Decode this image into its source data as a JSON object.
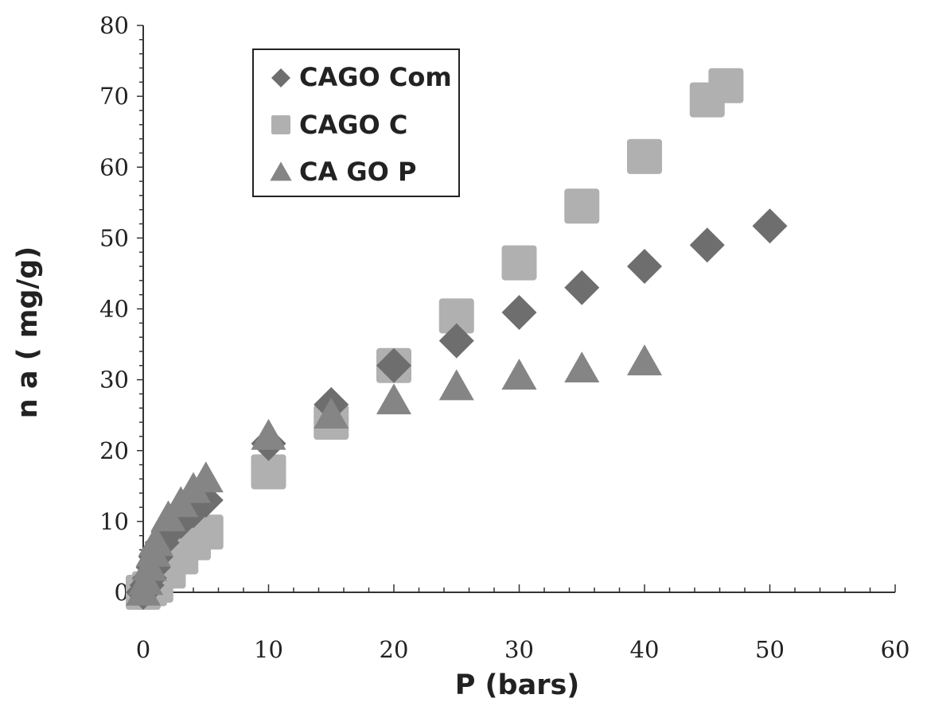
{
  "chart_data": {
    "type": "scatter",
    "title": "",
    "xlabel": "P (bars)",
    "ylabel": "n a ( mg/g)",
    "xlim": [
      0,
      60
    ],
    "ylim": [
      0,
      80
    ],
    "x_ticks": [
      0,
      10,
      20,
      30,
      40,
      50,
      60
    ],
    "y_ticks": [
      0,
      10,
      20,
      30,
      40,
      50,
      60,
      70,
      80
    ],
    "grid": false,
    "legend": {
      "placement": "top-left inside plot",
      "boxed": true
    },
    "series": [
      {
        "name": "CAGO Com",
        "marker": "diamond",
        "color": "#6e6e6e",
        "points": [
          [
            0,
            0
          ],
          [
            0.3,
            1
          ],
          [
            0.5,
            2
          ],
          [
            0.8,
            3.5
          ],
          [
            1,
            5
          ],
          [
            1.5,
            7
          ],
          [
            2,
            8.5
          ],
          [
            3,
            10
          ],
          [
            4,
            11.5
          ],
          [
            5,
            13
          ],
          [
            10,
            21
          ],
          [
            15,
            26.5
          ],
          [
            20,
            32
          ],
          [
            25,
            35.5
          ],
          [
            30,
            39.5
          ],
          [
            35,
            43
          ],
          [
            40,
            46
          ],
          [
            45,
            49
          ],
          [
            50,
            51.7
          ]
        ]
      },
      {
        "name": "CAGO C",
        "marker": "square",
        "color": "#b0b0b0",
        "points": [
          [
            0,
            0
          ],
          [
            0.5,
            0.5
          ],
          [
            1,
            1
          ],
          [
            2,
            3
          ],
          [
            3,
            5
          ],
          [
            4,
            7
          ],
          [
            5,
            8.5
          ],
          [
            10,
            17
          ],
          [
            15,
            24
          ],
          [
            20,
            32
          ],
          [
            25,
            39
          ],
          [
            30,
            46.5
          ],
          [
            35,
            54.5
          ],
          [
            40,
            61.5
          ],
          [
            45,
            69.5
          ],
          [
            46.5,
            71.5
          ]
        ]
      },
      {
        "name": "CA GO P",
        "marker": "triangle",
        "color": "#858585",
        "points": [
          [
            0,
            0
          ],
          [
            0.2,
            1.5
          ],
          [
            0.5,
            3.5
          ],
          [
            0.8,
            5.5
          ],
          [
            1,
            7
          ],
          [
            2,
            10.5
          ],
          [
            3,
            12.5
          ],
          [
            4,
            14.5
          ],
          [
            5,
            16
          ],
          [
            10,
            22
          ],
          [
            15,
            25
          ],
          [
            20,
            27
          ],
          [
            25,
            29
          ],
          [
            30,
            30.5
          ],
          [
            35,
            31.5
          ],
          [
            40,
            32.5
          ]
        ]
      }
    ]
  }
}
